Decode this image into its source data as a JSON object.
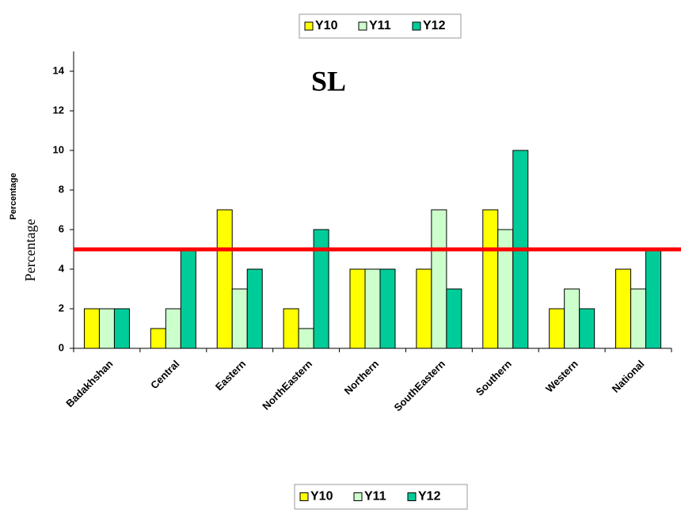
{
  "chart_data": {
    "type": "bar",
    "title": "SL",
    "ylabel": "Percentage",
    "categories": [
      "Badakhshan",
      "Central",
      "Eastern",
      "NorthEastern",
      "Northern",
      "SouthEastern",
      "Southern",
      "Western",
      "National"
    ],
    "series": [
      {
        "name": "Y10",
        "color": "#ffff00",
        "values": [
          2,
          1,
          7,
          2,
          4,
          4,
          7,
          2,
          4
        ]
      },
      {
        "name": "Y11",
        "color": "#ccffcc",
        "values": [
          2,
          2,
          3,
          1,
          4,
          7,
          6,
          3,
          3
        ]
      },
      {
        "name": "Y12",
        "color": "#00cc99",
        "values": [
          2,
          5,
          4,
          6,
          4,
          3,
          10,
          2,
          5
        ]
      }
    ],
    "ylim": [
      0,
      15
    ],
    "yticks": [
      0,
      2,
      4,
      6,
      8,
      10,
      12,
      14
    ],
    "reference_line": {
      "value": 5,
      "color": "#ff0000"
    }
  }
}
